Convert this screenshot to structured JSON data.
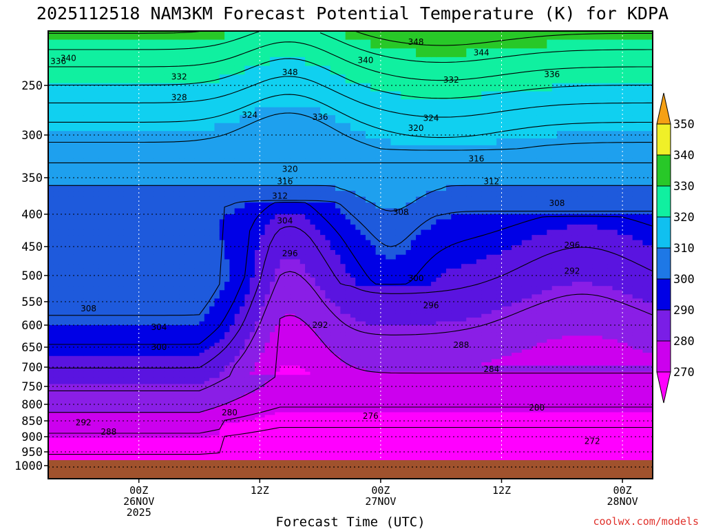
{
  "chart_data": {
    "type": "heatmap",
    "title": "2025112518 NAM3KM Forecast Potential Temperature (K) for KDPA",
    "xlabel": "Forecast Time (UTC)",
    "ylabel": "",
    "y_ticks": [
      "250",
      "300",
      "350",
      "400",
      "450",
      "500",
      "550",
      "600",
      "650",
      "700",
      "750",
      "800",
      "850",
      "900",
      "950",
      "1000"
    ],
    "y_tick_values": [
      250,
      300,
      350,
      400,
      450,
      500,
      550,
      600,
      650,
      700,
      750,
      800,
      850,
      900,
      950,
      1000
    ],
    "ylim": [
      200,
      1025
    ],
    "xlim_hours": [
      -9,
      51
    ],
    "x_ticks": [
      {
        "hour": 0,
        "lines": [
          "00Z",
          "26NOV",
          "2025"
        ]
      },
      {
        "hour": 12,
        "lines": [
          "12Z"
        ]
      },
      {
        "hour": 24,
        "lines": [
          "00Z",
          "27NOV"
        ]
      },
      {
        "hour": 36,
        "lines": [
          "12Z"
        ]
      },
      {
        "hour": 48,
        "lines": [
          "00Z",
          "28NOV"
        ]
      }
    ],
    "colorbar": {
      "levels": [
        270,
        280,
        290,
        300,
        310,
        320,
        330,
        340,
        350
      ],
      "labels": [
        "270",
        "280",
        "290",
        "300",
        "310",
        "320",
        "330",
        "340",
        "350"
      ],
      "colors": [
        "#ff00ff",
        "#cc00ee",
        "#8a1ee6",
        "#5a14e0",
        "#0000e6",
        "#1e5adc",
        "#1ea0ee",
        "#10d0f0",
        "#10f0a0",
        "#28c828",
        "#f0f028",
        "#f5a014"
      ],
      "band_edges": [
        270,
        275,
        280,
        285,
        290,
        295,
        300,
        310,
        320,
        330,
        340,
        350
      ]
    },
    "contour_interval_k": 4,
    "contour_labels": [
      {
        "text": "348",
        "hour": 27.5,
        "p": 210
      },
      {
        "text": "344",
        "hour": 34,
        "p": 220
      },
      {
        "text": "340",
        "hour": -7,
        "p": 225
      },
      {
        "text": "336",
        "hour": -8,
        "p": 228
      },
      {
        "text": "340",
        "hour": 22.5,
        "p": 227
      },
      {
        "text": "348",
        "hour": 15,
        "p": 238
      },
      {
        "text": "332",
        "hour": 4,
        "p": 242
      },
      {
        "text": "336",
        "hour": 41,
        "p": 240
      },
      {
        "text": "332",
        "hour": 31,
        "p": 245
      },
      {
        "text": "328",
        "hour": 4,
        "p": 262
      },
      {
        "text": "324",
        "hour": 11,
        "p": 280
      },
      {
        "text": "336",
        "hour": 18,
        "p": 282
      },
      {
        "text": "324",
        "hour": 29,
        "p": 283
      },
      {
        "text": "320",
        "hour": 27.5,
        "p": 293
      },
      {
        "text": "316",
        "hour": 33.5,
        "p": 328
      },
      {
        "text": "320",
        "hour": 15,
        "p": 340
      },
      {
        "text": "312",
        "hour": 35,
        "p": 355
      },
      {
        "text": "316",
        "hour": 14.5,
        "p": 355
      },
      {
        "text": "312",
        "hour": 14,
        "p": 375
      },
      {
        "text": "308",
        "hour": 41.5,
        "p": 385
      },
      {
        "text": "308",
        "hour": 26,
        "p": 397
      },
      {
        "text": "304",
        "hour": 14.5,
        "p": 410
      },
      {
        "text": "296",
        "hour": 15,
        "p": 462
      },
      {
        "text": "296",
        "hour": 43,
        "p": 448
      },
      {
        "text": "292",
        "hour": 43,
        "p": 492
      },
      {
        "text": "300",
        "hour": 27.5,
        "p": 505
      },
      {
        "text": "296",
        "hour": 29,
        "p": 558
      },
      {
        "text": "308",
        "hour": -5,
        "p": 565
      },
      {
        "text": "292",
        "hour": 18,
        "p": 600
      },
      {
        "text": "304",
        "hour": 2,
        "p": 605
      },
      {
        "text": "288",
        "hour": 32,
        "p": 645
      },
      {
        "text": "300",
        "hour": 2,
        "p": 650
      },
      {
        "text": "284",
        "hour": 35,
        "p": 705
      },
      {
        "text": "280",
        "hour": 39.5,
        "p": 810
      },
      {
        "text": "280",
        "hour": 9,
        "p": 825
      },
      {
        "text": "276",
        "hour": 23,
        "p": 835
      },
      {
        "text": "292",
        "hour": -5.5,
        "p": 855
      },
      {
        "text": "288",
        "hour": -3,
        "p": 885
      },
      {
        "text": "272",
        "hour": 45,
        "p": 915
      }
    ],
    "ground_band_color": "#a0522d"
  },
  "credit": "coolwx.com/models"
}
